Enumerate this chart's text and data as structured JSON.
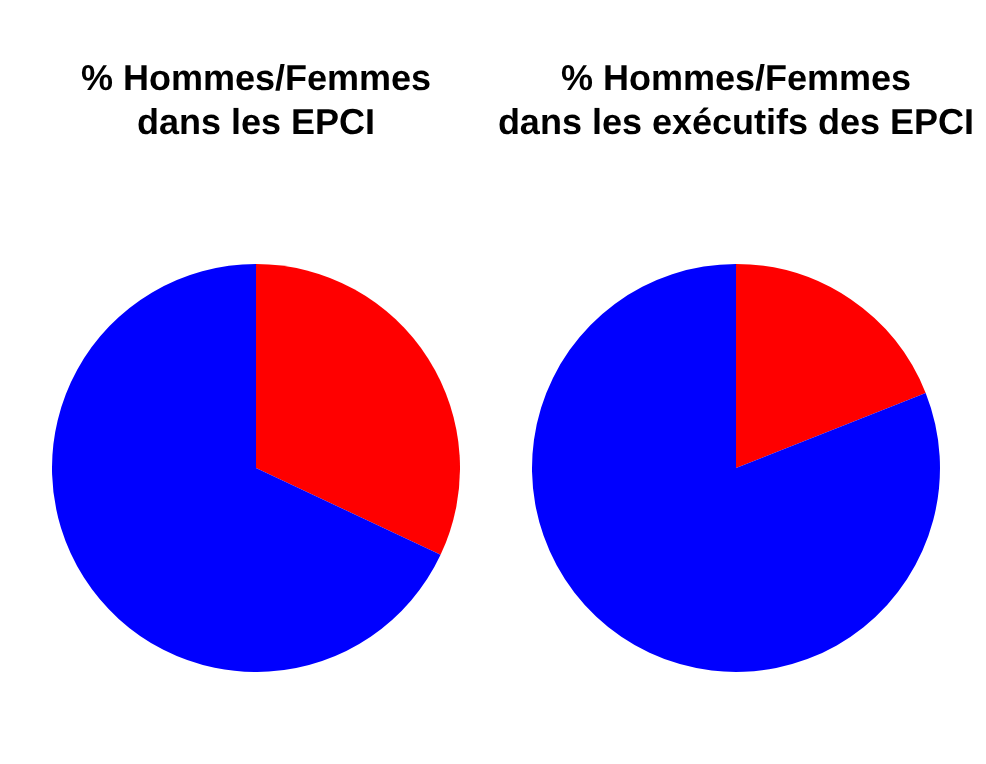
{
  "chart_data": [
    {
      "type": "pie",
      "title": "% Hommes/Femmes\ndans les EPCI",
      "categories": [
        null,
        null
      ],
      "values": [
        32,
        68
      ],
      "colors": [
        "#ff0000",
        "#0000ff"
      ],
      "legend": false
    },
    {
      "type": "pie",
      "title": "% Hommes/Femmes\ndans les exécutifs des EPCI",
      "categories": [
        null,
        null
      ],
      "values": [
        19,
        81
      ],
      "colors": [
        "#ff0000",
        "#0000ff"
      ],
      "legend": false
    }
  ]
}
